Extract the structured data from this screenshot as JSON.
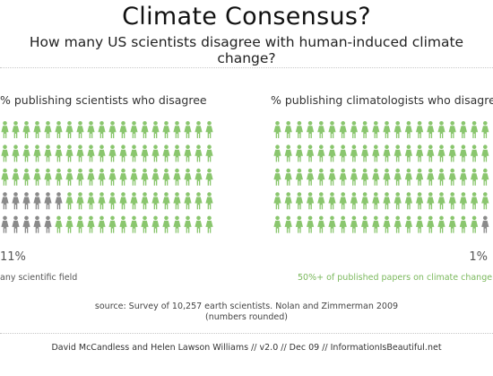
{
  "title": "Climate Consensus?",
  "subtitle": "How many US scientists disagree with human-induced climate change?",
  "colors": {
    "agree": "#8ac66e",
    "disagree": "#8a8a8a",
    "caption_green": "#7ab85c"
  },
  "chart_data": [
    {
      "type": "pictogram",
      "title": "% publishing scientists who disagree",
      "total": 100,
      "grid": {
        "rows": 5,
        "cols": 20
      },
      "categories": [
        "agree",
        "disagree"
      ],
      "values": [
        89,
        11
      ],
      "value_label": "11%",
      "annotation": "any scientific field"
    },
    {
      "type": "pictogram",
      "title": "% publishing climatologists who disagree",
      "total": 100,
      "grid": {
        "rows": 5,
        "cols": 20
      },
      "categories": [
        "agree",
        "disagree"
      ],
      "values": [
        99,
        1
      ],
      "value_label": "1%",
      "annotation": "50%+ of published papers on climate change"
    }
  ],
  "source": "source: Survey of 10,257 earth scientists. Nolan and Zimmerman 2009",
  "source_note": "(numbers rounded)",
  "credit": "David McCandless and Helen Lawson Williams // v2.0 // Dec 09 // InformationIsBeautiful.net"
}
